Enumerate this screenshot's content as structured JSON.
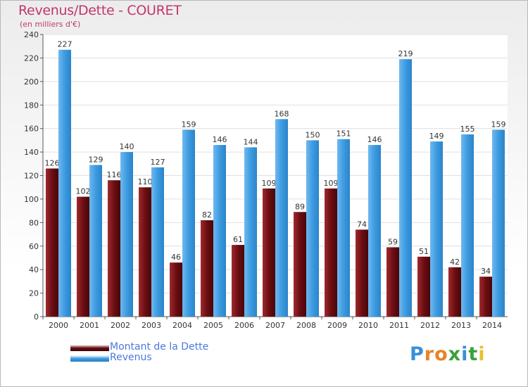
{
  "title": "Revenus/Dette - COURET",
  "subtitle": "(en milliers d'€)",
  "logo_text": "Proxiti",
  "chart_data": {
    "type": "bar",
    "title": "Revenus/Dette - COURET",
    "subtitle": "(en milliers d'€)",
    "categories": [
      "2000",
      "2001",
      "2002",
      "2003",
      "2004",
      "2005",
      "2006",
      "2007",
      "2008",
      "2009",
      "2010",
      "2011",
      "2012",
      "2013",
      "2014"
    ],
    "series": [
      {
        "name": "Montant de la Dette",
        "color": "#6b0e12",
        "values": [
          126,
          102,
          116,
          110,
          46,
          82,
          61,
          109,
          89,
          109,
          74,
          59,
          51,
          42,
          34
        ]
      },
      {
        "name": "Revenus",
        "color": "#3d9be0",
        "values": [
          227,
          129,
          140,
          127,
          159,
          146,
          144,
          168,
          150,
          151,
          146,
          219,
          149,
          155,
          159
        ]
      }
    ],
    "ylim": [
      0,
      240
    ],
    "yticks": [
      0,
      20,
      40,
      60,
      80,
      100,
      120,
      140,
      160,
      180,
      200,
      220,
      240
    ],
    "grid": true,
    "legend_position": "bottom-left"
  }
}
